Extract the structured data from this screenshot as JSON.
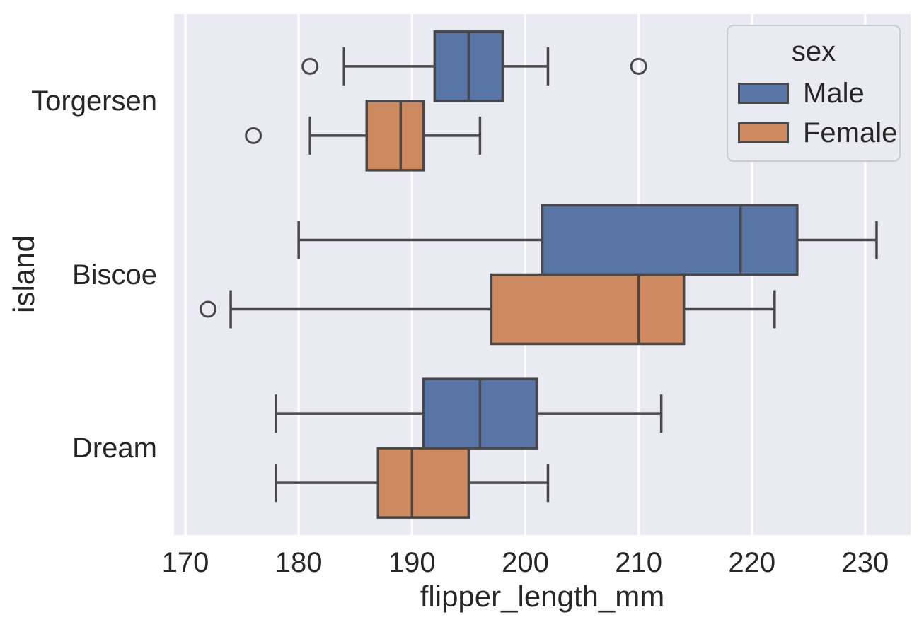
{
  "chart_data": {
    "type": "boxplot",
    "orientation": "horizontal",
    "xlabel": "flipper_length_mm",
    "ylabel": "island",
    "categories": [
      "Torgersen",
      "Biscoe",
      "Dream"
    ],
    "xlim": [
      169,
      234
    ],
    "xticks": [
      170,
      180,
      190,
      200,
      210,
      220,
      230
    ],
    "grid": "vertical-white-lines",
    "legend": {
      "title": "sex",
      "position": "upper-right",
      "entries": [
        {
          "label": "Male",
          "color": "#5875a6"
        },
        {
          "label": "Female",
          "color": "#cd8960"
        }
      ]
    },
    "series": [
      {
        "name": "Male",
        "color": "#5875a6",
        "boxes": [
          {
            "category": "Torgersen",
            "whislo": 184,
            "q1": 192,
            "med": 195,
            "q3": 198,
            "whishi": 202,
            "outliers": [
              181,
              210
            ]
          },
          {
            "category": "Biscoe",
            "whislo": 180,
            "q1": 201.5,
            "med": 219,
            "q3": 224,
            "whishi": 231,
            "outliers": []
          },
          {
            "category": "Dream",
            "whislo": 178,
            "q1": 191,
            "med": 196,
            "q3": 201,
            "whishi": 212,
            "outliers": []
          }
        ]
      },
      {
        "name": "Female",
        "color": "#cd8960",
        "boxes": [
          {
            "category": "Torgersen",
            "whislo": 181,
            "q1": 186,
            "med": 189,
            "q3": 191,
            "whishi": 196,
            "outliers": [
              176
            ]
          },
          {
            "category": "Biscoe",
            "whislo": 174,
            "q1": 197,
            "med": 210,
            "q3": 214,
            "whishi": 222,
            "outliers": [
              172
            ]
          },
          {
            "category": "Dream",
            "whislo": 178,
            "q1": 187,
            "med": 190,
            "q3": 195,
            "whishi": 202,
            "outliers": []
          }
        ]
      }
    ],
    "style": {
      "plot_bg": "#eaeaf2",
      "grid_color": "#ffffff",
      "box_edge_color": "#484848",
      "text_color": "#262626",
      "legend_border_color": "#cccccc",
      "figure_bg": "#ffffff"
    }
  }
}
